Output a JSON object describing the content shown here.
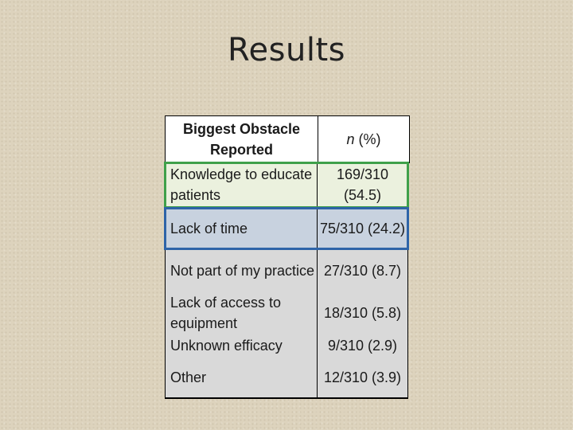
{
  "slide": {
    "title": "Results"
  },
  "table": {
    "header": {
      "col1": "Biggest Obstacle Reported",
      "col2_italic": "n",
      "col2_rest": " (%)"
    },
    "rows": [
      {
        "obstacle": "Knowledge to educate patients",
        "value": "169/310 (54.5)"
      },
      {
        "obstacle": "Lack of time",
        "value": "75/310 (24.2)"
      },
      {
        "obstacle": "Not part of my practice",
        "value": "27/310 (8.7)"
      },
      {
        "obstacle": "Lack of access to equipment",
        "value": "18/310 (5.8)"
      },
      {
        "obstacle": "Unknown efficacy",
        "value": "9/310 (2.9)"
      },
      {
        "obstacle": "Other",
        "value": "12/310 (3.9)"
      }
    ],
    "highlight_colors": {
      "green": "#3fa04a",
      "blue": "#2e64a8"
    }
  }
}
